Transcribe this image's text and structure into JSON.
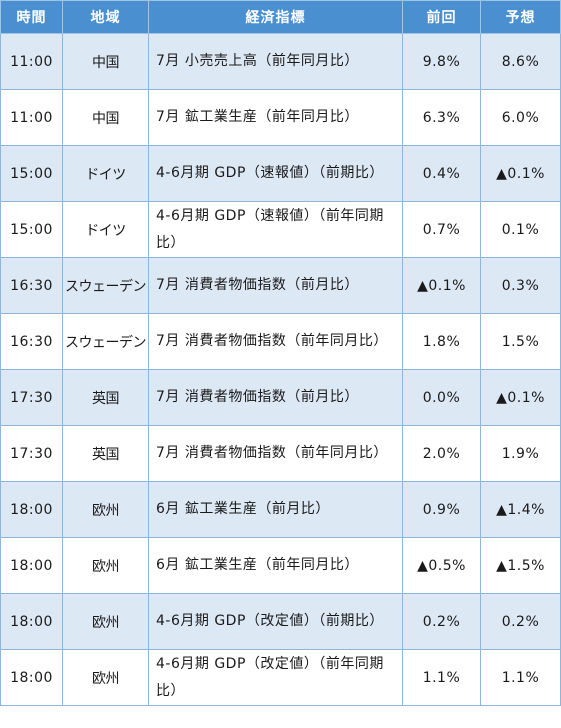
{
  "headers": {
    "time": "時間",
    "region": "地域",
    "indicator": "経済指標",
    "previous": "前回",
    "forecast": "予想"
  },
  "rows": [
    {
      "time": "11:00",
      "region": "中国",
      "indicator": "7月 小売売上高（前年同月比）",
      "previous": "9.8%",
      "forecast": "8.6%"
    },
    {
      "time": "11:00",
      "region": "中国",
      "indicator": "7月 鉱工業生産（前年同月比）",
      "previous": "6.3%",
      "forecast": "6.0%"
    },
    {
      "time": "15:00",
      "region": "ドイツ",
      "indicator": "4-6月期 GDP（速報値）（前期比）",
      "previous": "0.4%",
      "forecast": "▲0.1%"
    },
    {
      "time": "15:00",
      "region": "ドイツ",
      "indicator": "4-6月期 GDP（速報値）（前年同期比）",
      "previous": "0.7%",
      "forecast": "0.1%"
    },
    {
      "time": "16:30",
      "region": "スウェーデン",
      "indicator": "7月 消費者物価指数（前月比）",
      "previous": "▲0.1%",
      "forecast": "0.3%"
    },
    {
      "time": "16:30",
      "region": "スウェーデン",
      "indicator": "7月 消費者物価指数（前年同月比）",
      "previous": "1.8%",
      "forecast": "1.5%"
    },
    {
      "time": "17:30",
      "region": "英国",
      "indicator": "7月 消費者物価指数（前月比）",
      "previous": "0.0%",
      "forecast": "▲0.1%"
    },
    {
      "time": "17:30",
      "region": "英国",
      "indicator": "7月 消費者物価指数（前年同月比）",
      "previous": "2.0%",
      "forecast": "1.9%"
    },
    {
      "time": "18:00",
      "region": "欧州",
      "indicator": "6月 鉱工業生産（前月比）",
      "previous": "0.9%",
      "forecast": "▲1.4%"
    },
    {
      "time": "18:00",
      "region": "欧州",
      "indicator": "6月 鉱工業生産（前年同月比）",
      "previous": "▲0.5%",
      "forecast": "▲1.5%"
    },
    {
      "time": "18:00",
      "region": "欧州",
      "indicator": "4-6月期 GDP（改定値）（前期比）",
      "previous": "0.2%",
      "forecast": "0.2%"
    },
    {
      "time": "18:00",
      "region": "欧州",
      "indicator": "4-6月期 GDP（改定値）（前年同期比）",
      "previous": "1.1%",
      "forecast": "1.1%"
    }
  ]
}
